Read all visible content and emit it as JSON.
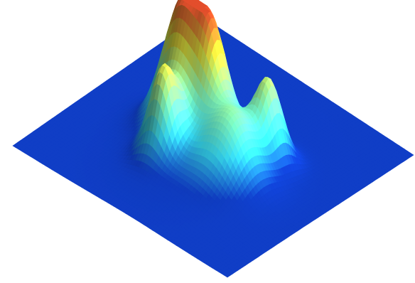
{
  "chart_data": {
    "type": "surface",
    "title": "",
    "xlabel": "",
    "ylabel": "",
    "zlabel": "",
    "grid": false,
    "axes_visible": false,
    "legend": "none",
    "colormap": "jet",
    "zlim": [
      0,
      1
    ],
    "surface_base": 0,
    "peaks": [
      {
        "name": "peak-back",
        "x": 0.37,
        "y": 0.62,
        "height": 0.96,
        "width": 0.11
      },
      {
        "name": "peak-left",
        "x": 0.24,
        "y": 0.37,
        "height": 0.57,
        "width": 0.07
      },
      {
        "name": "peak-center",
        "x": 0.5,
        "y": 0.49,
        "height": 0.57,
        "width": 0.08
      },
      {
        "name": "peak-front",
        "x": 0.58,
        "y": 0.24,
        "height": 0.42,
        "width": 0.12
      },
      {
        "name": "peak-right",
        "x": 0.77,
        "y": 0.39,
        "height": 0.55,
        "width": 0.07
      }
    ],
    "background_bump": {
      "x": 0.4,
      "y": 0.32,
      "height": 0.16,
      "width": 0.22
    }
  },
  "colors": {
    "low": "#0f3bbd",
    "mid_low": "#35d7f0",
    "mid": "#7ef2b6",
    "mid_high": "#e3e43c",
    "high": "#d84a2a",
    "background": "#ffffff"
  }
}
